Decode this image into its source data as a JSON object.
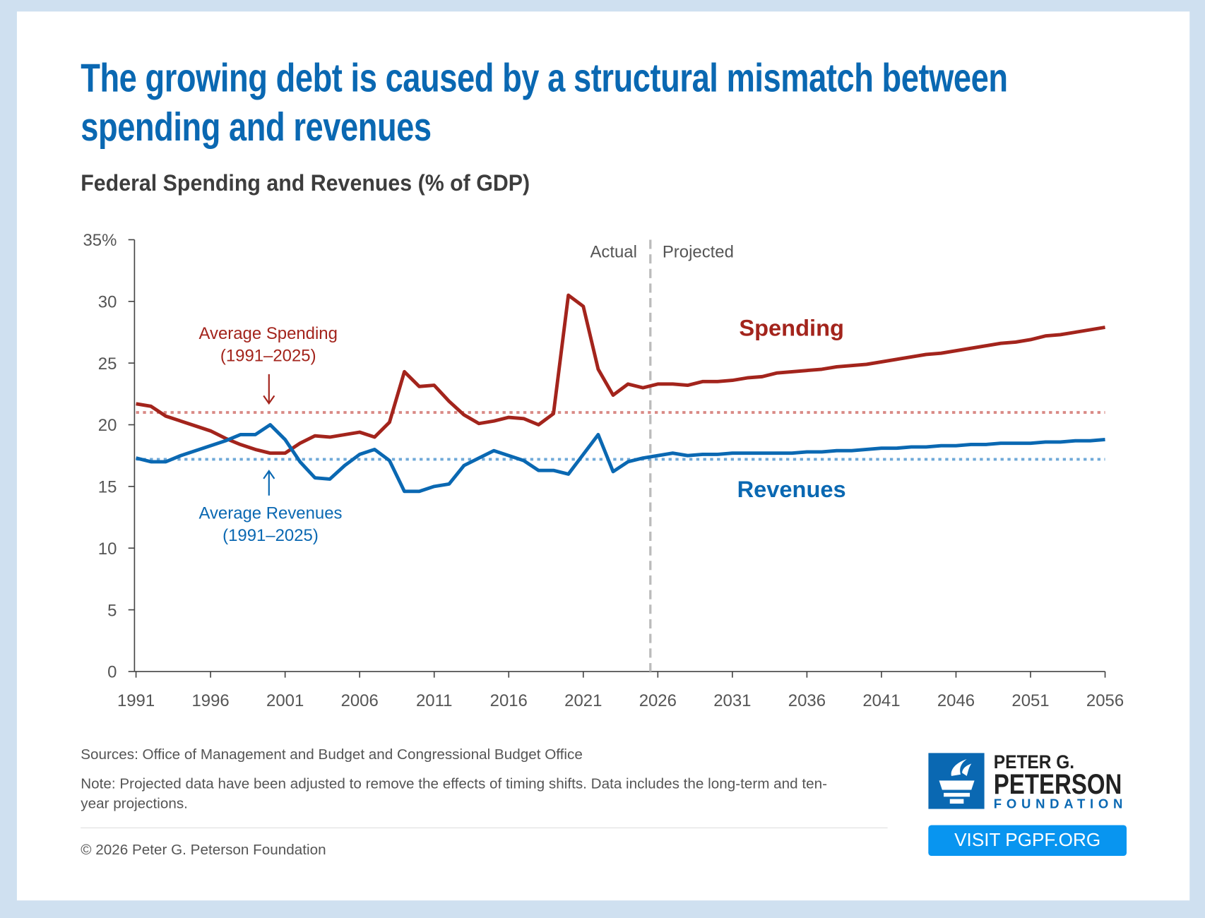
{
  "title_line1": "The growing debt is caused by a structural mismatch between",
  "title_line2": "spending and revenues",
  "subtitle": "Federal Spending and Revenues (% of GDP)",
  "footer": {
    "sources": "Sources: Office of Management and Budget and Congressional Budget Office",
    "note_line1": "Note: Projected data have been adjusted to remove the effects of timing shifts. Data includes the long-term and ten-",
    "note_line2": "year projections.",
    "copyright": "© 2026 Peter G. Peterson Foundation"
  },
  "logo": {
    "line1": "PETER G.",
    "line2": "PETERSON",
    "line3": "FOUNDATION"
  },
  "visit_button": "VISIT PGPF.ORG",
  "colors": {
    "spending": "#a3241c",
    "revenues": "#0a68b2",
    "spending_avg": "#d98a86",
    "revenues_avg": "#6fa9d8",
    "divider": "#bbbbbb"
  },
  "chart_data": {
    "type": "line",
    "title": "Federal Spending and Revenues (% of GDP)",
    "xlim": [
      1991,
      2056
    ],
    "ylim": [
      0,
      35
    ],
    "x_ticks": [
      "1991",
      "1996",
      "2001",
      "2006",
      "2011",
      "2016",
      "2021",
      "2026",
      "2031",
      "2036",
      "2041",
      "2046",
      "2051",
      "2056"
    ],
    "y_ticks": [
      {
        "v": 35,
        "label": "35%"
      },
      {
        "v": 30,
        "label": "30"
      },
      {
        "v": 25,
        "label": "25"
      },
      {
        "v": 20,
        "label": "20"
      },
      {
        "v": 15,
        "label": "15"
      },
      {
        "v": 10,
        "label": "10"
      },
      {
        "v": 5,
        "label": "5"
      },
      {
        "v": 0,
        "label": "0"
      }
    ],
    "x_start": 1991,
    "divider_year": 2025.5,
    "divider_labels": {
      "left": "Actual",
      "right": "Projected"
    },
    "series": [
      {
        "name": "Spending",
        "values": [
          21.7,
          21.5,
          20.7,
          20.3,
          19.9,
          19.5,
          18.9,
          18.4,
          18.0,
          17.7,
          17.7,
          18.5,
          19.1,
          19.0,
          19.2,
          19.4,
          19.0,
          20.2,
          24.3,
          23.1,
          23.2,
          21.9,
          20.8,
          20.1,
          20.3,
          20.6,
          20.5,
          20.0,
          20.9,
          30.5,
          29.6,
          24.5,
          22.4,
          23.3,
          23.0,
          23.3,
          23.3,
          23.2,
          23.5,
          23.5,
          23.6,
          23.8,
          23.9,
          24.2,
          24.3,
          24.4,
          24.5,
          24.7,
          24.8,
          24.9,
          25.1,
          25.3,
          25.5,
          25.7,
          25.8,
          26.0,
          26.2,
          26.4,
          26.6,
          26.7,
          26.9,
          27.2,
          27.3,
          27.5,
          27.7,
          27.9
        ]
      },
      {
        "name": "Revenues",
        "values": [
          17.3,
          17.0,
          17.0,
          17.5,
          17.9,
          18.3,
          18.7,
          19.2,
          19.2,
          20.0,
          18.8,
          17.0,
          15.7,
          15.6,
          16.7,
          17.6,
          18.0,
          17.1,
          14.6,
          14.6,
          15.0,
          15.2,
          16.7,
          17.3,
          17.9,
          17.5,
          17.1,
          16.3,
          16.3,
          16.0,
          17.6,
          19.2,
          16.2,
          17.0,
          17.3,
          17.5,
          17.7,
          17.5,
          17.6,
          17.6,
          17.7,
          17.7,
          17.7,
          17.7,
          17.7,
          17.8,
          17.8,
          17.9,
          17.9,
          18.0,
          18.1,
          18.1,
          18.2,
          18.2,
          18.3,
          18.3,
          18.4,
          18.4,
          18.5,
          18.5,
          18.5,
          18.6,
          18.6,
          18.7,
          18.7,
          18.8
        ]
      }
    ],
    "averages": [
      {
        "name": "Average Spending",
        "period": "(1991–2025)",
        "value": 21.0
      },
      {
        "name": "Average Revenues",
        "period": "(1991–2025)",
        "value": 17.2
      }
    ]
  }
}
